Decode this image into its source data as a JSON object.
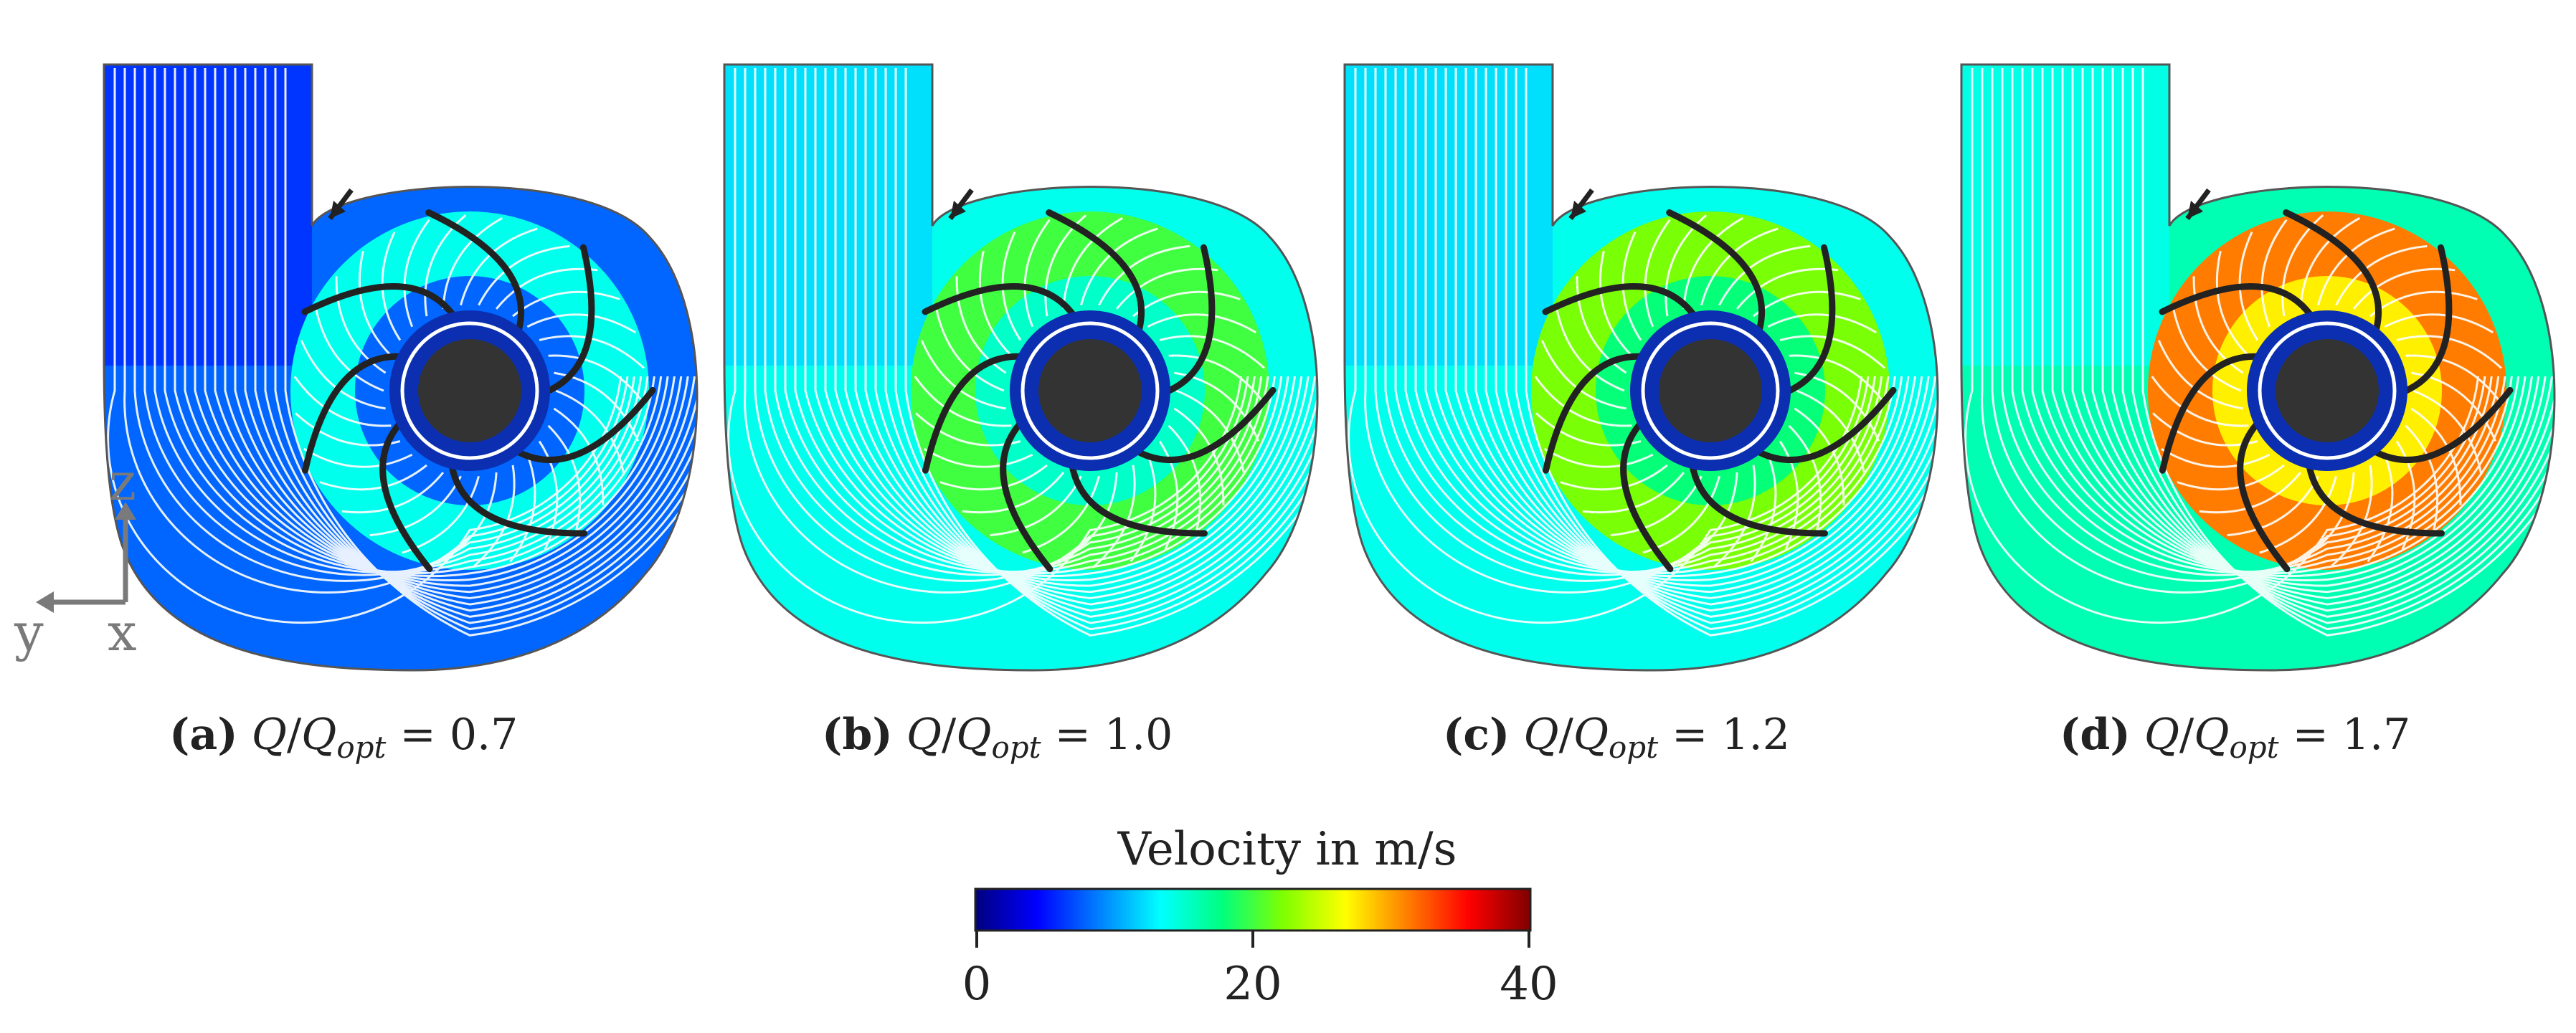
{
  "panels": [
    {
      "tag": "(a)",
      "q": "Q",
      "q_sub": "opt",
      "value": "0.7",
      "level": 0.35,
      "inner_level": 0.2,
      "bend_flow": 0.2
    },
    {
      "tag": "(b)",
      "q": "Q",
      "q_sub": "opt",
      "value": "1.0",
      "level": 0.5,
      "inner_level": 0.38,
      "bend_flow": 0.35
    },
    {
      "tag": "(c)",
      "q": "Q",
      "q_sub": "opt",
      "value": "1.2",
      "level": 0.55,
      "inner_level": 0.45,
      "bend_flow": 0.35
    },
    {
      "tag": "(d)",
      "q": "Q",
      "q_sub": "opt",
      "value": "1.7",
      "level": 0.78,
      "inner_level": 0.68,
      "bend_flow": 0.4
    }
  ],
  "colorbar": {
    "title": "Velocity in m/s",
    "ticks": [
      "0",
      "20",
      "40"
    ],
    "min": 0,
    "max": 40,
    "colors": [
      "#00007f",
      "#0000ff",
      "#007fff",
      "#00ffff",
      "#00ff7f",
      "#7fff00",
      "#ffff00",
      "#ff7f00",
      "#ff0000",
      "#7f0000"
    ]
  },
  "axes": {
    "z": "z",
    "y": "y",
    "x": "x"
  },
  "colors": {
    "casing_line": "#555555",
    "hub": "#333333",
    "blade": "#222222",
    "streamline": "#ffffff"
  }
}
